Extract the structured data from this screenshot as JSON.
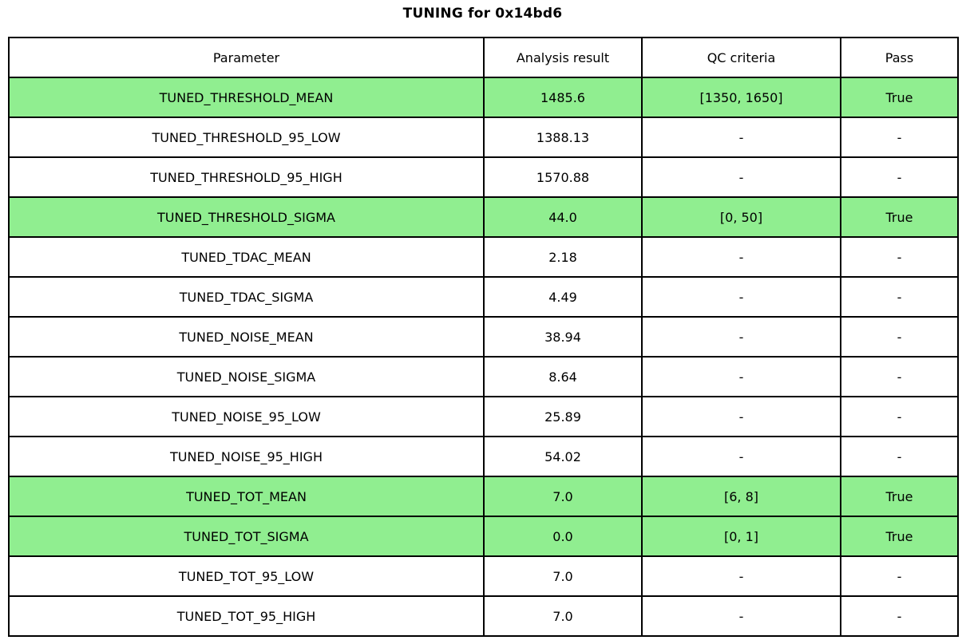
{
  "title": "TUNING for 0x14bd6",
  "table": {
    "headers": [
      "Parameter",
      "Analysis result",
      "QC criteria",
      "Pass"
    ],
    "highlight_color": "#90EE90",
    "rows": [
      {
        "parameter": "TUNED_THRESHOLD_MEAN",
        "result": "1485.6",
        "qc": "[1350, 1650]",
        "pass": "True",
        "highlight": true
      },
      {
        "parameter": "TUNED_THRESHOLD_95_LOW",
        "result": "1388.13",
        "qc": "-",
        "pass": "-",
        "highlight": false
      },
      {
        "parameter": "TUNED_THRESHOLD_95_HIGH",
        "result": "1570.88",
        "qc": "-",
        "pass": "-",
        "highlight": false
      },
      {
        "parameter": "TUNED_THRESHOLD_SIGMA",
        "result": "44.0",
        "qc": "[0, 50]",
        "pass": "True",
        "highlight": true
      },
      {
        "parameter": "TUNED_TDAC_MEAN",
        "result": "2.18",
        "qc": "-",
        "pass": "-",
        "highlight": false
      },
      {
        "parameter": "TUNED_TDAC_SIGMA",
        "result": "4.49",
        "qc": "-",
        "pass": "-",
        "highlight": false
      },
      {
        "parameter": "TUNED_NOISE_MEAN",
        "result": "38.94",
        "qc": "-",
        "pass": "-",
        "highlight": false
      },
      {
        "parameter": "TUNED_NOISE_SIGMA",
        "result": "8.64",
        "qc": "-",
        "pass": "-",
        "highlight": false
      },
      {
        "parameter": "TUNED_NOISE_95_LOW",
        "result": "25.89",
        "qc": "-",
        "pass": "-",
        "highlight": false
      },
      {
        "parameter": "TUNED_NOISE_95_HIGH",
        "result": "54.02",
        "qc": "-",
        "pass": "-",
        "highlight": false
      },
      {
        "parameter": "TUNED_TOT_MEAN",
        "result": "7.0",
        "qc": "[6, 8]",
        "pass": "True",
        "highlight": true
      },
      {
        "parameter": "TUNED_TOT_SIGMA",
        "result": "0.0",
        "qc": "[0, 1]",
        "pass": "True",
        "highlight": true
      },
      {
        "parameter": "TUNED_TOT_95_LOW",
        "result": "7.0",
        "qc": "-",
        "pass": "-",
        "highlight": false
      },
      {
        "parameter": "TUNED_TOT_95_HIGH",
        "result": "7.0",
        "qc": "-",
        "pass": "-",
        "highlight": false
      }
    ]
  },
  "chart_data": {
    "type": "table",
    "title": "TUNING for 0x14bd6",
    "columns": [
      "Parameter",
      "Analysis result",
      "QC criteria",
      "Pass"
    ],
    "rows": [
      [
        "TUNED_THRESHOLD_MEAN",
        1485.6,
        "[1350, 1650]",
        "True"
      ],
      [
        "TUNED_THRESHOLD_95_LOW",
        1388.13,
        "-",
        "-"
      ],
      [
        "TUNED_THRESHOLD_95_HIGH",
        1570.88,
        "-",
        "-"
      ],
      [
        "TUNED_THRESHOLD_SIGMA",
        44.0,
        "[0, 50]",
        "True"
      ],
      [
        "TUNED_TDAC_MEAN",
        2.18,
        "-",
        "-"
      ],
      [
        "TUNED_TDAC_SIGMA",
        4.49,
        "-",
        "-"
      ],
      [
        "TUNED_NOISE_MEAN",
        38.94,
        "-",
        "-"
      ],
      [
        "TUNED_NOISE_SIGMA",
        8.64,
        "-",
        "-"
      ],
      [
        "TUNED_NOISE_95_LOW",
        25.89,
        "-",
        "-"
      ],
      [
        "TUNED_NOISE_95_HIGH",
        54.02,
        "-",
        "-"
      ],
      [
        "TUNED_TOT_MEAN",
        7.0,
        "[6, 8]",
        "True"
      ],
      [
        "TUNED_TOT_SIGMA",
        0.0,
        "[0, 1]",
        "True"
      ],
      [
        "TUNED_TOT_95_LOW",
        7.0,
        "-",
        "-"
      ],
      [
        "TUNED_TOT_95_HIGH",
        7.0,
        "-",
        "-"
      ]
    ],
    "highlighted_rows": [
      "TUNED_THRESHOLD_MEAN",
      "TUNED_THRESHOLD_SIGMA",
      "TUNED_TOT_MEAN",
      "TUNED_TOT_SIGMA"
    ],
    "highlight_color": "#90EE90",
    "grid": true,
    "legend": false
  }
}
